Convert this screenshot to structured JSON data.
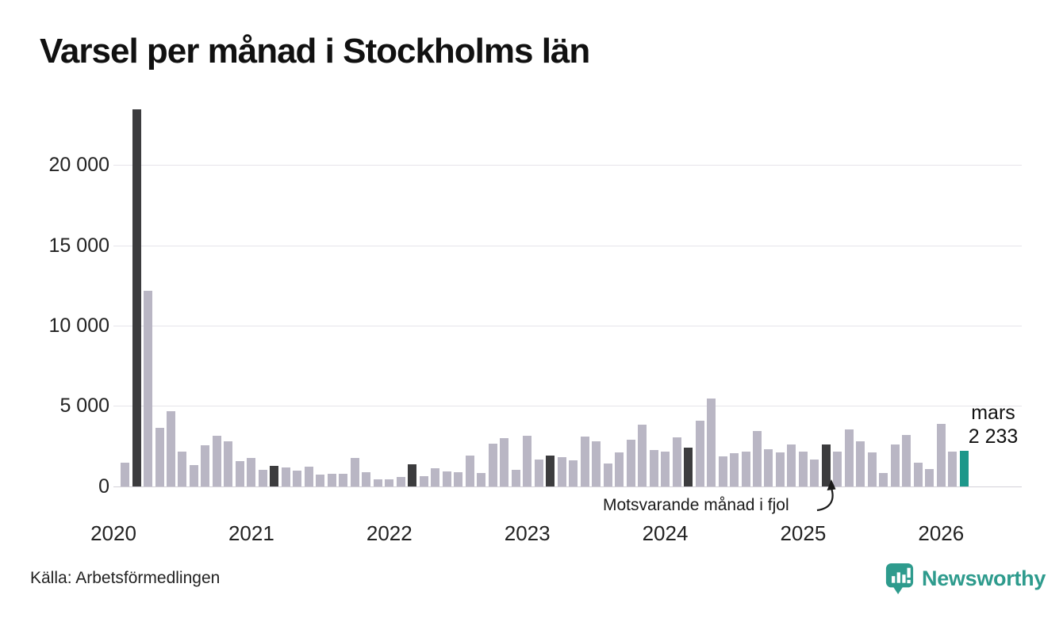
{
  "chart_data": {
    "type": "bar",
    "title": "Varsel per månad i Stockholms län",
    "x_range": "2020-02 till 2026-03",
    "ylabel": "",
    "xlabel": "",
    "ylim": [
      0,
      24000
    ],
    "grid": "horizontal",
    "y_ticks": [
      {
        "value": 0,
        "label": "0"
      },
      {
        "value": 5000,
        "label": "5 000"
      },
      {
        "value": 10000,
        "label": "10 000"
      },
      {
        "value": 15000,
        "label": "15 000"
      },
      {
        "value": 20000,
        "label": "20 000"
      }
    ],
    "year_labels": [
      "2020",
      "2021",
      "2022",
      "2023",
      "2024",
      "2025",
      "2026"
    ],
    "annotation": "Motsvarande månad i fjol",
    "annotation_target_month": "2025-03",
    "current_label": {
      "month": "mars",
      "value": "2 233"
    },
    "colors": {
      "bar": "#b9b6c4",
      "highlight_past": "#3c3c3e",
      "highlight_current": "#1d978a",
      "gridline": "#e6e4ea",
      "baseline": "#d2d0d8",
      "text": "#222222"
    },
    "points": [
      {
        "m": "2020-02",
        "v": 1500
      },
      {
        "m": "2020-03",
        "v": 23500,
        "hl": "past"
      },
      {
        "m": "2020-04",
        "v": 12200
      },
      {
        "m": "2020-05",
        "v": 3650
      },
      {
        "m": "2020-06",
        "v": 4700
      },
      {
        "m": "2020-07",
        "v": 2150
      },
      {
        "m": "2020-08",
        "v": 1350
      },
      {
        "m": "2020-09",
        "v": 2550
      },
      {
        "m": "2020-10",
        "v": 3150
      },
      {
        "m": "2020-11",
        "v": 2800
      },
      {
        "m": "2020-12",
        "v": 1600
      },
      {
        "m": "2021-01",
        "v": 1800
      },
      {
        "m": "2021-02",
        "v": 1050
      },
      {
        "m": "2021-03",
        "v": 1300,
        "hl": "past"
      },
      {
        "m": "2021-04",
        "v": 1200
      },
      {
        "m": "2021-05",
        "v": 1000
      },
      {
        "m": "2021-06",
        "v": 1250
      },
      {
        "m": "2021-07",
        "v": 720
      },
      {
        "m": "2021-08",
        "v": 790
      },
      {
        "m": "2021-09",
        "v": 800
      },
      {
        "m": "2021-10",
        "v": 1800
      },
      {
        "m": "2021-11",
        "v": 870
      },
      {
        "m": "2021-12",
        "v": 430
      },
      {
        "m": "2022-01",
        "v": 460
      },
      {
        "m": "2022-02",
        "v": 580
      },
      {
        "m": "2022-03",
        "v": 1370,
        "hl": "past"
      },
      {
        "m": "2022-04",
        "v": 630
      },
      {
        "m": "2022-05",
        "v": 1150
      },
      {
        "m": "2022-06",
        "v": 950
      },
      {
        "m": "2022-07",
        "v": 900
      },
      {
        "m": "2022-08",
        "v": 1950
      },
      {
        "m": "2022-09",
        "v": 830
      },
      {
        "m": "2022-10",
        "v": 2680
      },
      {
        "m": "2022-11",
        "v": 3010
      },
      {
        "m": "2022-12",
        "v": 1050
      },
      {
        "m": "2023-01",
        "v": 3140
      },
      {
        "m": "2023-02",
        "v": 1690
      },
      {
        "m": "2023-03",
        "v": 1950,
        "hl": "past"
      },
      {
        "m": "2023-04",
        "v": 1810
      },
      {
        "m": "2023-05",
        "v": 1610
      },
      {
        "m": "2023-06",
        "v": 3110
      },
      {
        "m": "2023-07",
        "v": 2810
      },
      {
        "m": "2023-08",
        "v": 1420
      },
      {
        "m": "2023-09",
        "v": 2120
      },
      {
        "m": "2023-10",
        "v": 2900
      },
      {
        "m": "2023-11",
        "v": 3870
      },
      {
        "m": "2023-12",
        "v": 2280
      },
      {
        "m": "2024-01",
        "v": 2160
      },
      {
        "m": "2024-02",
        "v": 3050
      },
      {
        "m": "2024-03",
        "v": 2430,
        "hl": "past"
      },
      {
        "m": "2024-04",
        "v": 4090
      },
      {
        "m": "2024-05",
        "v": 5500
      },
      {
        "m": "2024-06",
        "v": 1900
      },
      {
        "m": "2024-07",
        "v": 2100
      },
      {
        "m": "2024-08",
        "v": 2150
      },
      {
        "m": "2024-09",
        "v": 3450
      },
      {
        "m": "2024-10",
        "v": 2330
      },
      {
        "m": "2024-11",
        "v": 2130
      },
      {
        "m": "2024-12",
        "v": 2600
      },
      {
        "m": "2025-01",
        "v": 2170
      },
      {
        "m": "2025-02",
        "v": 1670
      },
      {
        "m": "2025-03",
        "v": 2600,
        "hl": "past"
      },
      {
        "m": "2025-04",
        "v": 2170
      },
      {
        "m": "2025-05",
        "v": 3550
      },
      {
        "m": "2025-06",
        "v": 2830
      },
      {
        "m": "2025-07",
        "v": 2130
      },
      {
        "m": "2025-08",
        "v": 830
      },
      {
        "m": "2025-09",
        "v": 2630
      },
      {
        "m": "2025-10",
        "v": 3220
      },
      {
        "m": "2025-11",
        "v": 1470
      },
      {
        "m": "2025-12",
        "v": 1110
      },
      {
        "m": "2026-01",
        "v": 3900
      },
      {
        "m": "2026-02",
        "v": 2180
      },
      {
        "m": "2026-03",
        "v": 2233,
        "hl": "current"
      }
    ]
  },
  "footer": {
    "source": "Källa: Arbetsförmedlingen",
    "brand": "Newsworthy",
    "brand_color": "#2e9b8d"
  }
}
